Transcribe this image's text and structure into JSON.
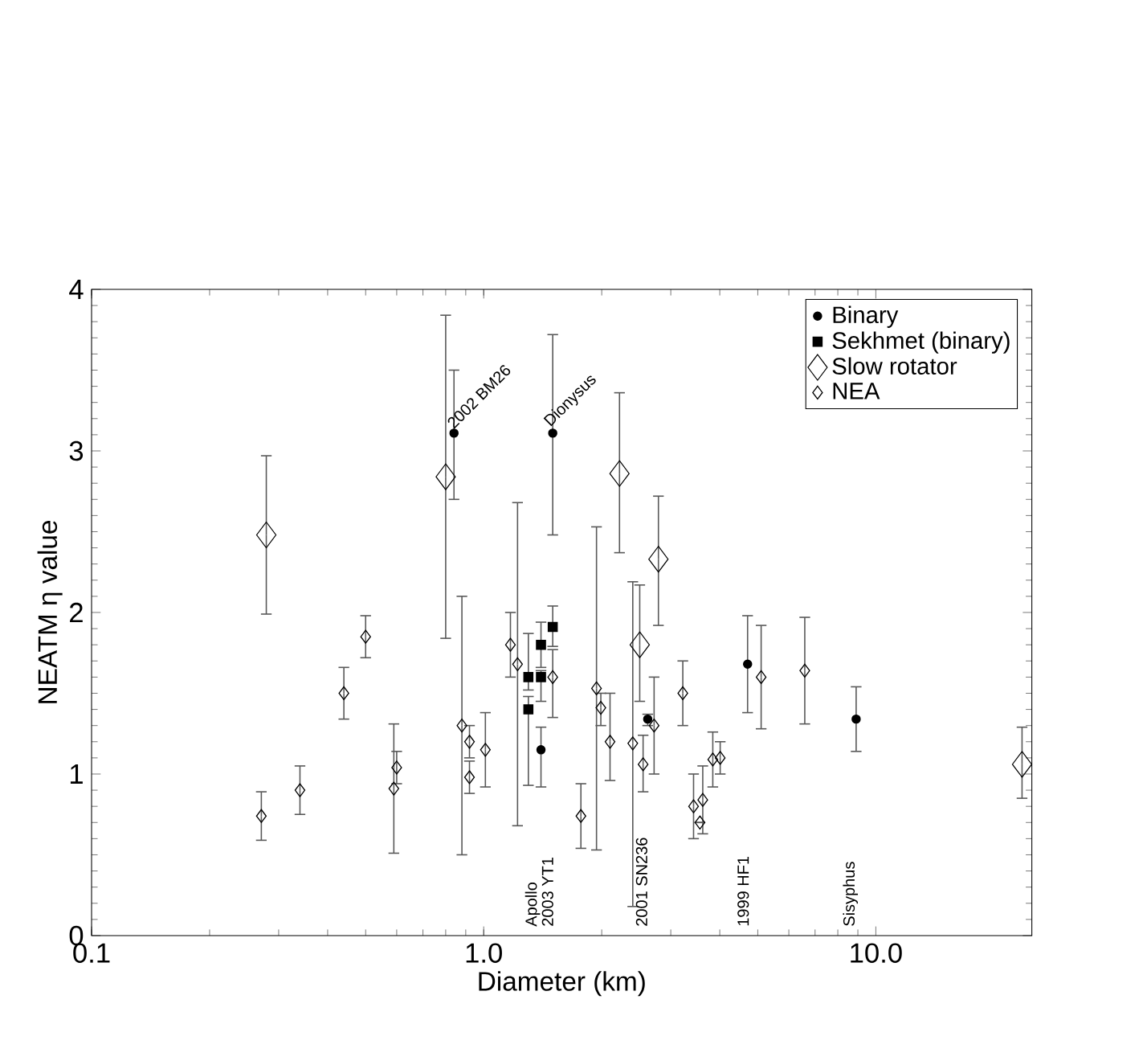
{
  "chart_data": {
    "type": "scatter",
    "xlabel": "Diameter (km)",
    "ylabel": "NEATM η value",
    "log": "x",
    "xlim": [
      0.1,
      25
    ],
    "xticks": [
      {
        "value": 0.1,
        "label": "0.1"
      },
      {
        "value": 1,
        "label": "1.0"
      },
      {
        "value": 10,
        "label": "10.0"
      }
    ],
    "ylim": [
      0,
      4
    ],
    "yticks": [
      0,
      1,
      2,
      3,
      4
    ],
    "grid": false,
    "legend": "top right",
    "series": [
      {
        "name": "Binary",
        "color": "#000000",
        "marker": "circle",
        "x": [
          0.84,
          1.5,
          1.4,
          2.62,
          4.71,
          8.91
        ],
        "values": [
          3.11,
          3.11,
          1.15,
          1.34,
          1.68,
          1.34
        ],
        "errors": [
          [
            2.7,
            3.5
          ],
          [
            2.48,
            3.72
          ],
          [
            0.92,
            1.29
          ],
          [
            1.3,
            1.37
          ],
          [
            1.38,
            1.98
          ],
          [
            1.14,
            1.54
          ]
        ]
      },
      {
        "name": "Sekhmet (binary)",
        "color": "#000000",
        "marker": "square",
        "x": [
          1.3,
          1.3,
          1.4,
          1.4,
          1.5
        ],
        "values": [
          1.6,
          1.4,
          1.8,
          1.6,
          1.91
        ],
        "errors": [
          [
            1.52,
            1.87
          ],
          [
            0.93,
            1.48
          ],
          [
            1.66,
            1.94
          ],
          [
            1.45,
            1.64
          ],
          [
            1.79,
            2.04
          ]
        ]
      },
      {
        "name": "Slow rotator",
        "color": "#000000",
        "marker": "diamond",
        "x": [
          0.279,
          0.8,
          2.22,
          2.79,
          2.5,
          23.6
        ],
        "values": [
          2.48,
          2.84,
          2.86,
          2.33,
          1.8,
          1.06
        ],
        "errors": [
          [
            1.99,
            2.97
          ],
          [
            1.84,
            3.84
          ],
          [
            2.37,
            3.36
          ],
          [
            1.92,
            2.72
          ],
          [
            1.45,
            2.17
          ],
          [
            0.85,
            1.29
          ]
        ]
      },
      {
        "name": "NEA",
        "color": "#000000",
        "marker": "diamond",
        "x": [
          0.271,
          0.34,
          0.44,
          0.5,
          0.59,
          0.6,
          0.88,
          0.92,
          0.92,
          1.01,
          1.17,
          1.22,
          1.5,
          1.94,
          1.99,
          2.1,
          1.77,
          2.4,
          2.55,
          2.72,
          3.22,
          3.43,
          3.62,
          3.56,
          3.84,
          4.01,
          5.1,
          6.59
        ],
        "values": [
          0.74,
          0.9,
          1.5,
          1.85,
          0.91,
          1.04,
          1.3,
          1.2,
          0.98,
          1.15,
          1.8,
          1.68,
          1.6,
          1.53,
          1.41,
          1.2,
          0.74,
          1.19,
          1.06,
          1.3,
          1.5,
          0.8,
          0.84,
          0.7,
          1.09,
          1.1,
          1.6,
          1.64
        ],
        "errors": [
          [
            0.59,
            0.89
          ],
          [
            0.75,
            1.05
          ],
          [
            1.34,
            1.66
          ],
          [
            1.72,
            1.98
          ],
          [
            0.51,
            1.31
          ],
          [
            0.94,
            1.14
          ],
          [
            0.5,
            2.1
          ],
          [
            1.1,
            1.3
          ],
          [
            0.88,
            1.08
          ],
          [
            0.92,
            1.38
          ],
          [
            1.6,
            2.0
          ],
          [
            0.68,
            2.68
          ],
          [
            1.35,
            1.77
          ],
          [
            0.53,
            2.53
          ],
          [
            1.3,
            1.5
          ],
          [
            0.96,
            1.5
          ],
          [
            0.54,
            0.94
          ],
          [
            0.18,
            2.19
          ],
          [
            0.89,
            1.24
          ],
          [
            1.0,
            1.6
          ],
          [
            1.3,
            1.7
          ],
          [
            0.6,
            1.0
          ],
          [
            0.63,
            1.05
          ],
          null,
          [
            0.92,
            1.26
          ],
          [
            1.0,
            1.2
          ],
          [
            1.28,
            1.92
          ],
          [
            1.31,
            1.97
          ]
        ]
      }
    ],
    "annotations": [
      {
        "text": "2002 BM26",
        "x": 0.84,
        "y": 3.11
      },
      {
        "text": "Dionysus",
        "x": 1.5,
        "y": 3.11
      },
      "Apollo",
      "2003 YT1",
      "2001 SN236",
      "1999 HF1",
      "Sisyphus"
    ]
  }
}
